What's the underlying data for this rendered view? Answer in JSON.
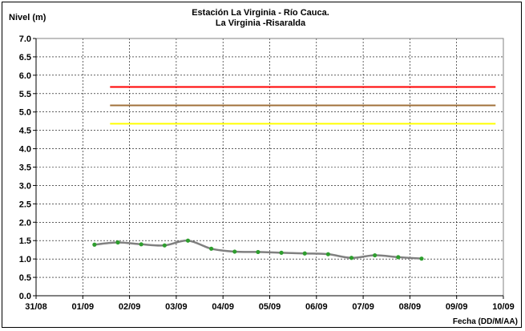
{
  "chart_data": {
    "type": "line",
    "title": "Estación La Virginia  - Río Cauca.",
    "subtitle": "La Virginia -Risaralda",
    "ylabel": "Nivel (m)",
    "xlabel": "Fecha (DD/M/AA)",
    "ylim": [
      0.0,
      7.0
    ],
    "y_ticks": [
      "0.0",
      "0.5",
      "1.0",
      "1.5",
      "2.0",
      "2.5",
      "3.0",
      "3.5",
      "4.0",
      "4.5",
      "5.0",
      "5.5",
      "6.0",
      "6.5",
      "7.0"
    ],
    "xlim": [
      "31/08",
      "10/09"
    ],
    "x_ticks": [
      "31/08",
      "01/09",
      "02/09",
      "03/09",
      "04/09",
      "05/09",
      "06/09",
      "07/09",
      "08/09",
      "09/09",
      "10/09"
    ],
    "grid": true,
    "series": [
      {
        "color": "#808080",
        "marker_color": "#2e9e2e",
        "points": [
          {
            "x": "01/09 06:00",
            "y": 1.39
          },
          {
            "x": "01/09 18:00",
            "y": 1.45
          },
          {
            "x": "02/09 06:00",
            "y": 1.4
          },
          {
            "x": "02/09 18:00",
            "y": 1.37
          },
          {
            "x": "03/09 06:00",
            "y": 1.5
          },
          {
            "x": "03/09 18:00",
            "y": 1.28
          },
          {
            "x": "04/09 06:00",
            "y": 1.2
          },
          {
            "x": "04/09 18:00",
            "y": 1.19
          },
          {
            "x": "05/09 06:00",
            "y": 1.17
          },
          {
            "x": "05/09 18:00",
            "y": 1.15
          },
          {
            "x": "06/09 06:00",
            "y": 1.13
          },
          {
            "x": "06/09 18:00",
            "y": 1.03
          },
          {
            "x": "07/09 06:00",
            "y": 1.1
          },
          {
            "x": "07/09 18:00",
            "y": 1.05
          },
          {
            "x": "08/09 06:00",
            "y": 1.01
          }
        ]
      }
    ],
    "threshold_lines": [
      {
        "color": "#ff0000",
        "y": 5.68,
        "x_start": "01/09 14:00",
        "x_end": "09/09 20:00"
      },
      {
        "color": "#a0703a",
        "y": 5.18,
        "x_start": "01/09 14:00",
        "x_end": "09/09 20:00"
      },
      {
        "color": "#ffff00",
        "y": 4.68,
        "x_start": "01/09 14:00",
        "x_end": "09/09 20:00"
      }
    ]
  }
}
